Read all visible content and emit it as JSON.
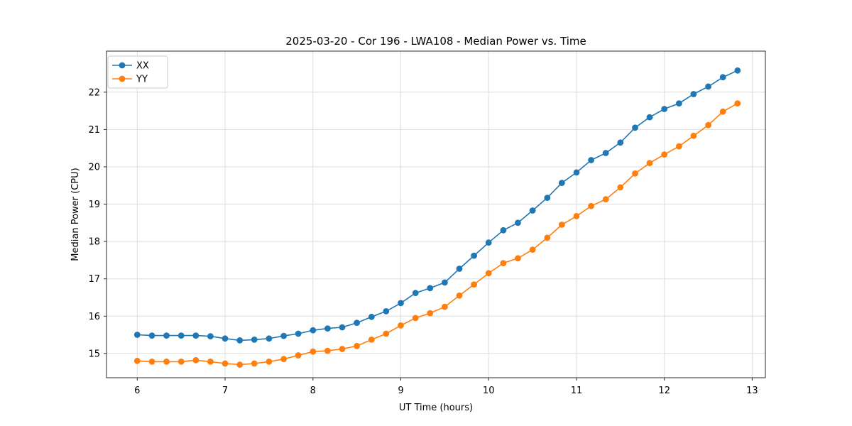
{
  "chart_data": {
    "type": "line",
    "title": "2025-03-20 - Cor 196 - LWA108 - Median Power vs. Time",
    "xlabel": "UT Time (hours)",
    "ylabel": "Median Power (CPU)",
    "xlim": [
      5.65,
      13.15
    ],
    "ylim": [
      14.35,
      23.1
    ],
    "xticks": [
      6,
      7,
      8,
      9,
      10,
      11,
      12,
      13
    ],
    "yticks": [
      15,
      16,
      17,
      18,
      19,
      20,
      21,
      22
    ],
    "grid": true,
    "legend_position": "upper left",
    "marker": "circle",
    "x": [
      6.0,
      6.167,
      6.333,
      6.5,
      6.667,
      6.833,
      7.0,
      7.167,
      7.333,
      7.5,
      7.667,
      7.833,
      8.0,
      8.167,
      8.333,
      8.5,
      8.667,
      8.833,
      9.0,
      9.167,
      9.333,
      9.5,
      9.667,
      9.833,
      10.0,
      10.167,
      10.333,
      10.5,
      10.667,
      10.833,
      11.0,
      11.167,
      11.333,
      11.5,
      11.667,
      11.833,
      12.0,
      12.167,
      12.333,
      12.5,
      12.667,
      12.833
    ],
    "series": [
      {
        "name": "XX",
        "color": "#1f77b4",
        "values": [
          15.5,
          15.48,
          15.48,
          15.48,
          15.48,
          15.46,
          15.4,
          15.35,
          15.37,
          15.4,
          15.47,
          15.53,
          15.62,
          15.67,
          15.7,
          15.82,
          15.98,
          16.13,
          16.35,
          16.62,
          16.75,
          16.9,
          17.27,
          17.62,
          17.97,
          18.3,
          18.5,
          18.83,
          19.17,
          19.57,
          19.85,
          20.18,
          20.37,
          20.65,
          21.05,
          21.33,
          21.55,
          21.7,
          21.95,
          22.15,
          22.4,
          22.58
        ]
      },
      {
        "name": "YY",
        "color": "#ff7f0e",
        "values": [
          14.8,
          14.78,
          14.78,
          14.78,
          14.82,
          14.78,
          14.73,
          14.7,
          14.73,
          14.78,
          14.85,
          14.95,
          15.05,
          15.07,
          15.12,
          15.2,
          15.37,
          15.53,
          15.75,
          15.95,
          16.08,
          16.25,
          16.55,
          16.85,
          17.15,
          17.42,
          17.55,
          17.78,
          18.1,
          18.45,
          18.68,
          18.95,
          19.13,
          19.45,
          19.82,
          20.1,
          20.33,
          20.55,
          20.83,
          21.12,
          21.48,
          21.7
        ]
      }
    ]
  }
}
